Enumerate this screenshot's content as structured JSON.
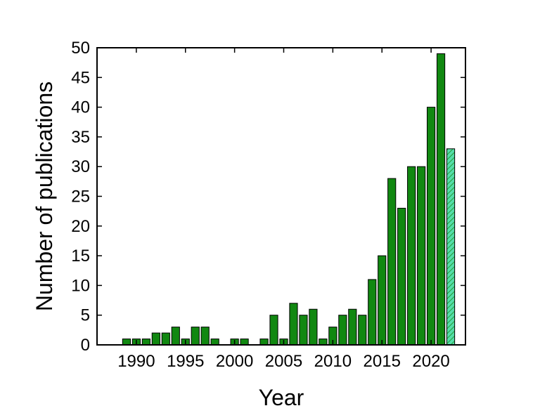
{
  "chart_data": {
    "type": "bar",
    "xlabel": "Year",
    "ylabel": "Number of publications",
    "xlim": [
      1986,
      2023.5
    ],
    "ylim": [
      0,
      50
    ],
    "x_ticks": [
      1990,
      1995,
      2000,
      2005,
      2010,
      2015,
      2020
    ],
    "y_ticks": [
      0,
      5,
      10,
      15,
      20,
      25,
      30,
      35,
      40,
      45,
      50
    ],
    "grid": false,
    "colors": {
      "bar": "#118811",
      "bar_stroke": "#000000",
      "partial_bar": "#55ddaa",
      "hatch": "#118811"
    },
    "categories": [
      1989,
      1990,
      1991,
      1992,
      1993,
      1994,
      1995,
      1996,
      1997,
      1998,
      1999,
      2000,
      2001,
      2002,
      2003,
      2004,
      2005,
      2006,
      2007,
      2008,
      2009,
      2010,
      2011,
      2012,
      2013,
      2014,
      2015,
      2016,
      2017,
      2018,
      2019,
      2020,
      2021,
      2022,
      2023
    ],
    "values": [
      1,
      1,
      1,
      2,
      2,
      3,
      1,
      3,
      3,
      1,
      0,
      1,
      1,
      0,
      1,
      5,
      1,
      7,
      5,
      6,
      1,
      3,
      5,
      6,
      5,
      11,
      15,
      28,
      23,
      30,
      30,
      40,
      49,
      33,
      0
    ],
    "hatched": [
      false,
      false,
      false,
      false,
      false,
      false,
      false,
      false,
      false,
      false,
      false,
      false,
      false,
      false,
      false,
      false,
      false,
      false,
      false,
      false,
      false,
      false,
      false,
      false,
      false,
      false,
      false,
      false,
      false,
      false,
      false,
      false,
      false,
      true,
      false
    ]
  }
}
